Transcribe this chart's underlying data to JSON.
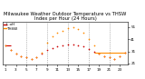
{
  "title": "Milwaukee Weather Outdoor Temperature vs THSW Index per Hour (24 Hours)",
  "temp_color": "#cc0000",
  "thsw_color": "#ff8c00",
  "background_color": "#ffffff",
  "grid_color": "#888888",
  "temp_data_x": [
    1,
    2,
    3,
    4,
    5,
    6,
    7,
    8,
    9,
    10,
    11,
    12,
    13,
    14,
    15,
    16,
    17,
    18,
    19,
    20,
    21,
    22,
    23,
    24
  ],
  "temp_data_y": [
    36,
    32,
    29,
    27,
    26,
    25,
    26,
    29,
    32,
    34,
    35,
    36,
    37,
    37,
    36,
    35,
    33,
    31,
    29,
    27,
    26,
    25,
    27,
    30
  ],
  "thsw_data_x": [
    1,
    2,
    3,
    4,
    5,
    6,
    7,
    8,
    9,
    10,
    11,
    12,
    13,
    14,
    15,
    16,
    17,
    18,
    19,
    20,
    21,
    22,
    23,
    24
  ],
  "thsw_data_y": [
    36,
    32,
    29,
    27,
    26,
    25,
    26,
    30,
    38,
    43,
    46,
    48,
    50,
    51,
    49,
    46,
    41,
    36,
    29,
    27,
    26,
    25,
    27,
    30
  ],
  "orange_line_x": [
    18,
    24
  ],
  "orange_line_y": [
    30,
    30
  ],
  "red_line_x": [
    1,
    2
  ],
  "red_line_y": [
    36,
    36
  ],
  "ylim": [
    20,
    55
  ],
  "xlim": [
    0.5,
    24.5
  ],
  "ytick_positions": [
    21,
    31,
    41,
    51
  ],
  "ytick_labels": [
    "21",
    "31",
    "41",
    "51"
  ],
  "xtick_positions": [
    1,
    3,
    5,
    7,
    9,
    11,
    13,
    15,
    17,
    19,
    21,
    23
  ],
  "xtick_labels": [
    "1",
    "3",
    "5",
    "7",
    "9",
    "11",
    "13",
    "15",
    "17",
    "19",
    "21",
    "23"
  ],
  "vgrid_positions": [
    5,
    9,
    13,
    17,
    21
  ],
  "title_fontsize": 3.8,
  "tick_fontsize": 3.0,
  "dot_size": 1.5,
  "legend_fontsize": 3.0,
  "legend_label_temp": "L oH",
  "legend_label_thsw": "THSW"
}
